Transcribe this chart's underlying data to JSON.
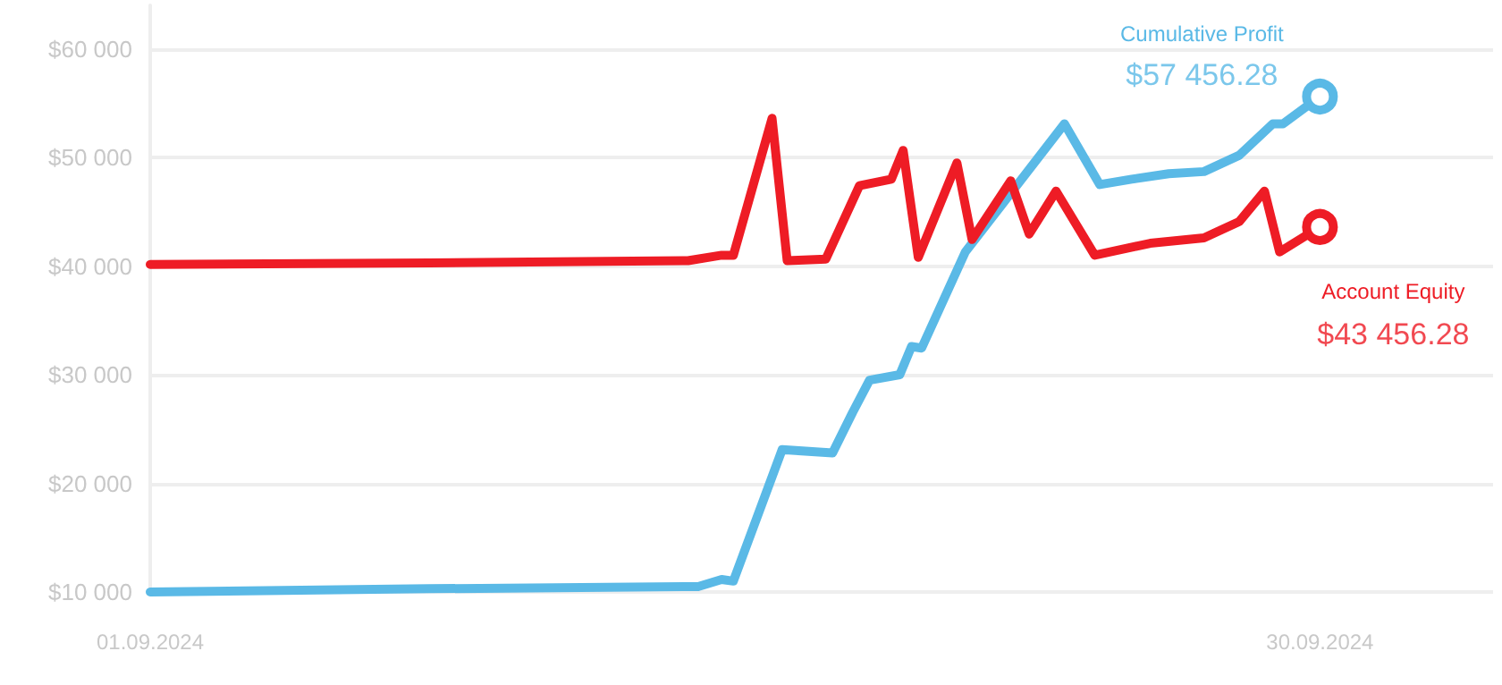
{
  "chart_data": {
    "type": "line",
    "grid": "y",
    "legend": false,
    "line_style": "solid",
    "xlim": [
      "2024-09-01T00:00",
      "2024-10-04T07:00"
    ],
    "xticks": [
      {
        "value": "2024-09-01T00:00",
        "label": "01.09.2024"
      },
      {
        "value": "2024-09-30T00:00",
        "label": "30.09.2024"
      }
    ],
    "ylim": [
      10000,
      64000
    ],
    "yticks": [
      {
        "value": 10000,
        "label": "$10 000"
      },
      {
        "value": 20000,
        "label": "$20 000"
      },
      {
        "value": 30000,
        "label": "$30 000"
      },
      {
        "value": 40000,
        "label": "$40 000"
      },
      {
        "value": 50000,
        "label": "$50 000"
      },
      {
        "value": 60000,
        "label": "$60 000"
      }
    ],
    "series": [
      {
        "name": "Cumulative Profit",
        "color": "#5ab9e6",
        "x": [
          "2024-09-01T00:00",
          "2024-09-07T22:00",
          "2024-09-14T14:00",
          "2024-09-15T04:00",
          "2024-09-15T11:00",
          "2024-09-16T16:00",
          "2024-09-17T22:00",
          "2024-09-18T10:00",
          "2024-09-18T20:00",
          "2024-09-19T14:00",
          "2024-09-19T21:00",
          "2024-09-20T03:00",
          "2024-09-21T05:00",
          "2024-09-23T16:00",
          "2024-09-24T13:00",
          "2024-09-25T08:00",
          "2024-09-26T06:00",
          "2024-09-27T03:00",
          "2024-09-28T00:00",
          "2024-09-28T20:00",
          "2024-09-29T02:00",
          "2024-09-30T00:00"
        ],
        "values": [
          10000,
          10300,
          10500,
          11150,
          11000,
          23100,
          22800,
          26550,
          29500,
          30000,
          32600,
          32450,
          41300,
          53100,
          47500,
          48000,
          48500,
          48700,
          50200,
          53100,
          53100,
          55600
        ]
      },
      {
        "name": "Account Equity",
        "color": "#ee1c25",
        "x": [
          "2024-09-01T00:00",
          "2024-09-07T22:00",
          "2024-09-14T08:00",
          "2024-09-15T04:00",
          "2024-09-15T11:00",
          "2024-09-16T10:00",
          "2024-09-16T19:00",
          "2024-09-17T18:00",
          "2024-09-18T14:00",
          "2024-09-19T09:00",
          "2024-09-19T16:00",
          "2024-09-20T01:00",
          "2024-09-21T00:00",
          "2024-09-21T09:00",
          "2024-09-22T08:00",
          "2024-09-22T19:00",
          "2024-09-23T11:00",
          "2024-09-24T10:00",
          "2024-09-25T19:00",
          "2024-09-27T03:00",
          "2024-09-28T00:00",
          "2024-09-28T15:00",
          "2024-09-29T00:00",
          "2024-09-30T00:00"
        ],
        "values": [
          40150,
          40300,
          40500,
          41000,
          41000,
          53600,
          40500,
          40650,
          47400,
          48000,
          50650,
          40800,
          49500,
          42450,
          47850,
          42950,
          46900,
          41000,
          42100,
          42600,
          44100,
          46900,
          41300,
          43600
        ]
      }
    ],
    "annotations": [
      {
        "text": "$57 456.28",
        "x": "2024-09-30T00:00",
        "y": 55600
      },
      {
        "text": "$43 456.28",
        "x": "2024-09-30T00:00",
        "y": 43600
      }
    ]
  }
}
